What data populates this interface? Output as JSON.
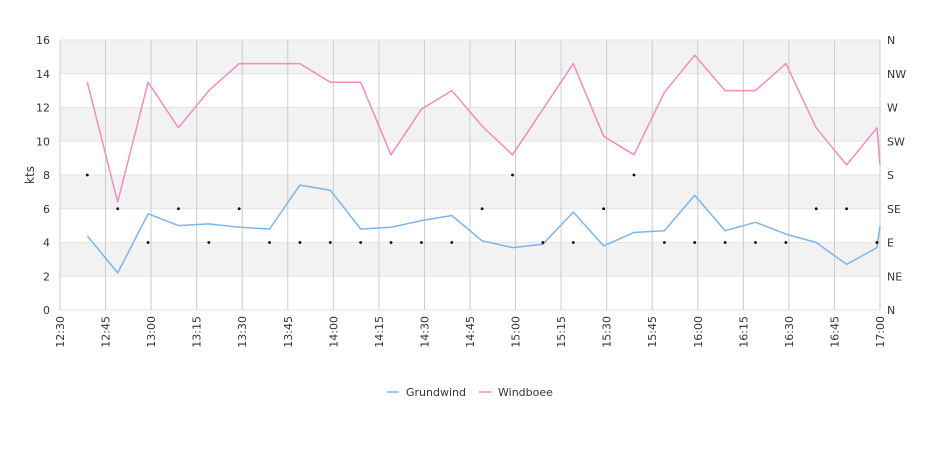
{
  "chart_data": {
    "type": "line",
    "title": "",
    "xlabel": "",
    "ylabel": "kts",
    "ylim": [
      0,
      16
    ],
    "yticks": [
      "0",
      "2",
      "4",
      "6",
      "8",
      "10",
      "12",
      "14",
      "16"
    ],
    "y2ticks": [
      "N",
      "NE",
      "E",
      "SE",
      "S",
      "SW",
      "W",
      "NW",
      "N"
    ],
    "xlim": [
      "12:30",
      "17:00"
    ],
    "xticks": [
      "12:30",
      "12:45",
      "13:00",
      "13:15",
      "13:30",
      "13:45",
      "14:00",
      "14:15",
      "14:30",
      "14:45",
      "15:00",
      "15:15",
      "15:30",
      "15:45",
      "16:00",
      "16:15",
      "16:30",
      "16:45",
      "17:00"
    ],
    "x": [
      "12:39",
      "12:49",
      "12:59",
      "13:09",
      "13:19",
      "13:29",
      "13:39",
      "13:49",
      "13:59",
      "14:09",
      "14:19",
      "14:29",
      "14:39",
      "14:49",
      "14:59",
      "15:09",
      "15:19",
      "15:29",
      "15:39",
      "15:49",
      "15:59",
      "16:09",
      "16:19",
      "16:29",
      "16:39",
      "16:49",
      "16:59",
      "17:00"
    ],
    "series": [
      {
        "name": "Grundwind",
        "color": "#7cb5ec",
        "values": [
          4.4,
          2.2,
          5.7,
          5.0,
          5.1,
          4.9,
          4.8,
          7.4,
          7.1,
          4.8,
          4.9,
          5.3,
          5.6,
          4.1,
          3.7,
          3.9,
          5.8,
          3.8,
          4.6,
          4.7,
          6.8,
          4.7,
          5.2,
          4.5,
          4.0,
          2.7,
          3.7,
          5.0
        ]
      },
      {
        "name": "Windboee",
        "color": "#f08cc0",
        "values": [
          13.5,
          6.4,
          13.5,
          10.8,
          13.0,
          14.6,
          14.6,
          14.6,
          13.5,
          13.5,
          9.2,
          11.9,
          13.0,
          10.9,
          9.2,
          11.9,
          14.6,
          10.3,
          9.2,
          12.9,
          15.1,
          13.0,
          13.0,
          14.6,
          10.8,
          8.6,
          10.8,
          8.6
        ]
      }
    ],
    "direction_points": {
      "x": [
        "12:39",
        "12:49",
        "12:59",
        "13:09",
        "13:19",
        "13:29",
        "13:39",
        "13:49",
        "13:59",
        "14:09",
        "14:19",
        "14:29",
        "14:39",
        "14:49",
        "14:59",
        "15:09",
        "15:19",
        "15:29",
        "15:39",
        "15:49",
        "15:59",
        "16:09",
        "16:19",
        "16:29",
        "16:39",
        "16:49",
        "16:59"
      ],
      "values": [
        "S",
        "SE",
        "E",
        "SE",
        "E",
        "SE",
        "E",
        "E",
        "E",
        "E",
        "E",
        "E",
        "E",
        "SE",
        "S",
        "E",
        "E",
        "SE",
        "S",
        "E",
        "E",
        "E",
        "E",
        "E",
        "SE",
        "SE",
        "E"
      ]
    },
    "grid": true,
    "legend": "bottom-center"
  }
}
